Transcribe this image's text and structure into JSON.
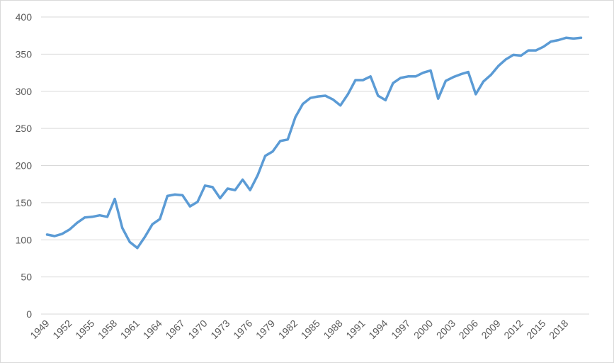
{
  "chart_data": {
    "type": "line",
    "title": "",
    "xlabel": "",
    "ylabel": "",
    "ylim": [
      0,
      400
    ],
    "yticks": [
      0,
      50,
      100,
      150,
      200,
      250,
      300,
      350,
      400
    ],
    "grid": true,
    "legend": "none",
    "series_color": "#5b9bd5",
    "x": [
      1949,
      1950,
      1951,
      1952,
      1953,
      1954,
      1955,
      1956,
      1957,
      1958,
      1959,
      1960,
      1961,
      1962,
      1963,
      1964,
      1965,
      1966,
      1967,
      1968,
      1969,
      1970,
      1971,
      1972,
      1973,
      1974,
      1975,
      1976,
      1977,
      1978,
      1979,
      1980,
      1981,
      1982,
      1983,
      1984,
      1985,
      1986,
      1987,
      1988,
      1989,
      1990,
      1991,
      1992,
      1993,
      1994,
      1995,
      1996,
      1997,
      1998,
      1999,
      2000,
      2001,
      2002,
      2003,
      2004,
      2005,
      2006,
      2007,
      2008,
      2009,
      2010,
      2011,
      2012,
      2013,
      2014,
      2015,
      2016,
      2017,
      2018,
      2019,
      2020
    ],
    "xtick_labels": [
      "1949",
      "1952",
      "1955",
      "1958",
      "1961",
      "1964",
      "1967",
      "1970",
      "1973",
      "1976",
      "1979",
      "1982",
      "1985",
      "1988",
      "1991",
      "1994",
      "1997",
      "2000",
      "2003",
      "2006",
      "2009",
      "2012",
      "2015",
      "2018"
    ],
    "series": [
      {
        "values": [
          107,
          105,
          108,
          114,
          123,
          130,
          131,
          133,
          131,
          155,
          116,
          97,
          89,
          104,
          121,
          128,
          159,
          161,
          160,
          145,
          151,
          173,
          171,
          156,
          169,
          167,
          181,
          167,
          187,
          213,
          219,
          233,
          235,
          265,
          283,
          291,
          293,
          294,
          289,
          281,
          296,
          315,
          315,
          320,
          294,
          288,
          311,
          318,
          320,
          320,
          325,
          328,
          290,
          314,
          319,
          323,
          326,
          296,
          313,
          322,
          334,
          343,
          349,
          348,
          355,
          355,
          360,
          367,
          369,
          372,
          371,
          372
        ]
      }
    ]
  }
}
